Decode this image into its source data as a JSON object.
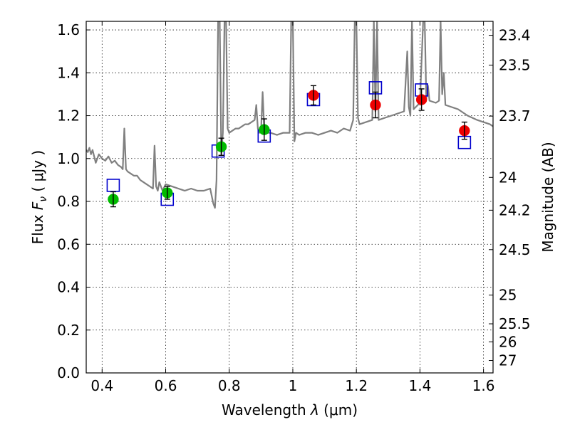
{
  "chart_data": {
    "type": "scatter",
    "title": "",
    "xlabel_prefix": "Wavelength  ",
    "xlabel_symbol": "λ",
    "xlabel_unit": " (μm)",
    "ylabel_prefix": "Flux  ",
    "ylabel_symbol": "F",
    "ylabel_sub": "ν",
    "ylabel_unit": "  ( μJy )",
    "y2label": "Magnitude (AB)",
    "xlim": [
      0.35,
      1.63
    ],
    "ylim": [
      0.0,
      1.64
    ],
    "x_ticks": [
      0.4,
      0.6,
      0.8,
      1.0,
      1.2,
      1.4,
      1.6
    ],
    "x_tick_labels": [
      "0.4",
      "0.6",
      "0.8",
      "1",
      "1.2",
      "1.4",
      "1.6"
    ],
    "y_ticks": [
      0.0,
      0.2,
      0.4,
      0.6,
      0.8,
      1.0,
      1.2,
      1.4,
      1.6
    ],
    "y_tick_labels": [
      "0.0",
      "0.2",
      "0.4",
      "0.6",
      "0.8",
      "1.0",
      "1.2",
      "1.4",
      "1.6"
    ],
    "y2_ticks": [
      {
        "label": "23.4",
        "flux": 1.575
      },
      {
        "label": "23.5",
        "flux": 1.436
      },
      {
        "label": "23.7",
        "flux": 1.198
      },
      {
        "label": "24",
        "flux": 0.912
      },
      {
        "label": "24.2",
        "flux": 0.759
      },
      {
        "label": "24.5",
        "flux": 0.575
      },
      {
        "label": "25",
        "flux": 0.363
      },
      {
        "label": "25.5",
        "flux": 0.229
      },
      {
        "label": "26",
        "flux": 0.145
      },
      {
        "label": "27",
        "flux": 0.058
      }
    ],
    "grid": true,
    "colors": {
      "model": "#808080",
      "model_points": "#0000cc",
      "optical": "#00bb00",
      "nir": "#ee0000",
      "errorbar": "#000000"
    },
    "series": [
      {
        "kind": "model_spectrum",
        "x": [
          0.35,
          0.355,
          0.36,
          0.365,
          0.37,
          0.38,
          0.39,
          0.4,
          0.41,
          0.42,
          0.43,
          0.44,
          0.45,
          0.46,
          0.465,
          0.47,
          0.475,
          0.48,
          0.49,
          0.5,
          0.51,
          0.52,
          0.53,
          0.54,
          0.55,
          0.56,
          0.565,
          0.57,
          0.575,
          0.58,
          0.59,
          0.6,
          0.62,
          0.64,
          0.66,
          0.68,
          0.7,
          0.72,
          0.74,
          0.75,
          0.755,
          0.76,
          0.765,
          0.77,
          0.775,
          0.78,
          0.785,
          0.79,
          0.795,
          0.8,
          0.81,
          0.82,
          0.83,
          0.84,
          0.85,
          0.86,
          0.87,
          0.88,
          0.885,
          0.89,
          0.895,
          0.9,
          0.905,
          0.91,
          0.915,
          0.92,
          0.93,
          0.95,
          0.97,
          0.99,
          0.995,
          1.0,
          1.005,
          1.01,
          1.02,
          1.04,
          1.06,
          1.08,
          1.1,
          1.12,
          1.14,
          1.16,
          1.18,
          1.19,
          1.195,
          1.2,
          1.205,
          1.21,
          1.23,
          1.25,
          1.255,
          1.26,
          1.265,
          1.27,
          1.29,
          1.31,
          1.33,
          1.35,
          1.36,
          1.365,
          1.37,
          1.375,
          1.38,
          1.4,
          1.41,
          1.415,
          1.42,
          1.425,
          1.43,
          1.45,
          1.46,
          1.465,
          1.47,
          1.475,
          1.48,
          1.5,
          1.52,
          1.55,
          1.58,
          1.6,
          1.62,
          1.63
        ],
        "y": [
          1.04,
          1.03,
          1.05,
          1.02,
          1.04,
          0.98,
          1.02,
          1.0,
          0.99,
          1.01,
          0.98,
          0.99,
          0.97,
          0.96,
          0.95,
          1.14,
          0.95,
          0.94,
          0.93,
          0.92,
          0.92,
          0.9,
          0.89,
          0.88,
          0.87,
          0.86,
          1.06,
          0.87,
          0.85,
          0.89,
          0.85,
          0.88,
          0.87,
          0.86,
          0.85,
          0.86,
          0.85,
          0.85,
          0.86,
          0.79,
          0.77,
          0.9,
          1.64,
          1.64,
          1.02,
          1.12,
          1.64,
          1.64,
          1.14,
          1.12,
          1.13,
          1.14,
          1.14,
          1.15,
          1.16,
          1.16,
          1.17,
          1.18,
          1.25,
          1.14,
          1.12,
          1.13,
          1.31,
          1.14,
          1.13,
          1.12,
          1.12,
          1.11,
          1.12,
          1.12,
          1.64,
          1.64,
          1.08,
          1.12,
          1.11,
          1.12,
          1.12,
          1.11,
          1.12,
          1.13,
          1.12,
          1.14,
          1.13,
          1.18,
          1.64,
          1.64,
          1.19,
          1.16,
          1.17,
          1.18,
          1.64,
          1.22,
          1.64,
          1.18,
          1.19,
          1.2,
          1.21,
          1.22,
          1.5,
          1.24,
          1.2,
          1.64,
          1.23,
          1.26,
          1.64,
          1.64,
          1.28,
          1.34,
          1.27,
          1.26,
          1.27,
          1.64,
          1.3,
          1.4,
          1.25,
          1.24,
          1.23,
          1.2,
          1.18,
          1.17,
          1.16,
          1.15
        ]
      },
      {
        "kind": "model_points",
        "marker": "open-square",
        "x": [
          0.435,
          0.605,
          0.765,
          0.91,
          1.065,
          1.26,
          1.405,
          1.54
        ],
        "y": [
          0.875,
          0.81,
          1.035,
          1.105,
          1.275,
          1.33,
          1.32,
          1.075
        ]
      },
      {
        "kind": "observed_optical",
        "marker": "filled-circle",
        "x": [
          0.435,
          0.605,
          0.775,
          0.91
        ],
        "y": [
          0.81,
          0.84,
          1.055,
          1.135
        ],
        "yerr": [
          0.035,
          0.03,
          0.04,
          0.05
        ]
      },
      {
        "kind": "observed_nir",
        "marker": "filled-circle",
        "x": [
          1.065,
          1.26,
          1.405,
          1.54
        ],
        "y": [
          1.295,
          1.25,
          1.275,
          1.13
        ],
        "yerr": [
          0.045,
          0.06,
          0.05,
          0.04
        ]
      }
    ]
  }
}
